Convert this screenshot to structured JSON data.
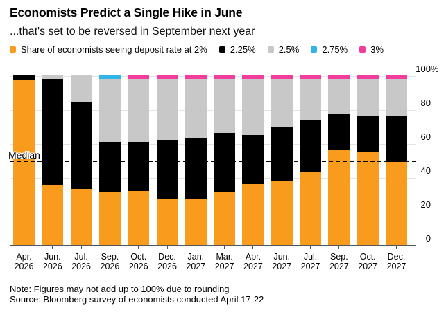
{
  "header": {
    "title": "Economists Predict a Single Hike in June",
    "subtitle": "...that's set to be reversed in September next year"
  },
  "chart_data": {
    "type": "bar",
    "stacked": true,
    "title": "Economists Predict a Single Hike in June",
    "subtitle": "...that's set to be reversed in September next year",
    "categories": [
      {
        "month": "Apr.",
        "year": "2026"
      },
      {
        "month": "Jun.",
        "year": "2026"
      },
      {
        "month": "Jul.",
        "year": "2026"
      },
      {
        "month": "Sep.",
        "year": "2026"
      },
      {
        "month": "Oct.",
        "year": "2026"
      },
      {
        "month": "Dec.",
        "year": "2026"
      },
      {
        "month": "Jan.",
        "year": "2027"
      },
      {
        "month": "Mar.",
        "year": "2027"
      },
      {
        "month": "Apr.",
        "year": "2027"
      },
      {
        "month": "Jun.",
        "year": "2027"
      },
      {
        "month": "Jul.",
        "year": "2027"
      },
      {
        "month": "Sep.",
        "year": "2027"
      },
      {
        "month": "Oct.",
        "year": "2027"
      },
      {
        "month": "Dec.",
        "year": "2027"
      }
    ],
    "series": [
      {
        "name": "Share of economists seeing deposit rate at 2%",
        "short_name": "2%",
        "color": "#f99b1d",
        "values": [
          97,
          35,
          33,
          31,
          32,
          27,
          27,
          31,
          36,
          38,
          43,
          56,
          55,
          49
        ]
      },
      {
        "name": "2.25%",
        "short_name": "2.25%",
        "color": "#000000",
        "values": [
          3,
          63,
          51,
          30,
          29,
          35,
          36,
          35,
          29,
          32,
          31,
          21,
          21,
          27
        ]
      },
      {
        "name": "2.5%",
        "short_name": "2.5%",
        "color": "#c8c8c8",
        "values": [
          0,
          2,
          16,
          37,
          37,
          36,
          35,
          32,
          33,
          28,
          24,
          21,
          22,
          22
        ]
      },
      {
        "name": "2.75%",
        "short_name": "2.75%",
        "color": "#31b4e8",
        "values": [
          0,
          0,
          0,
          2,
          0,
          0,
          0,
          0,
          0,
          0,
          0,
          0,
          0,
          0
        ]
      },
      {
        "name": "3%",
        "short_name": "3%",
        "color": "#f23d9c",
        "values": [
          0,
          0,
          0,
          0,
          2,
          2,
          2,
          2,
          2,
          2,
          2,
          2,
          2,
          2
        ]
      }
    ],
    "ylim": [
      0,
      100
    ],
    "yticks": [
      0,
      20,
      40,
      60,
      80,
      100
    ],
    "ytick_labels": [
      "0",
      "20",
      "40",
      "60",
      "80",
      "100%"
    ],
    "median_line": {
      "label": "Median",
      "value": 50
    },
    "legend_position": "top",
    "grid": true,
    "axis_colors": {
      "gridline": "#e3e3e3",
      "baseline": "#55565a"
    }
  },
  "footer": {
    "note": "Note: Figures may not add up to 100% due to rounding",
    "source": "Source: Bloomberg survey of economists conducted April 17-22"
  }
}
